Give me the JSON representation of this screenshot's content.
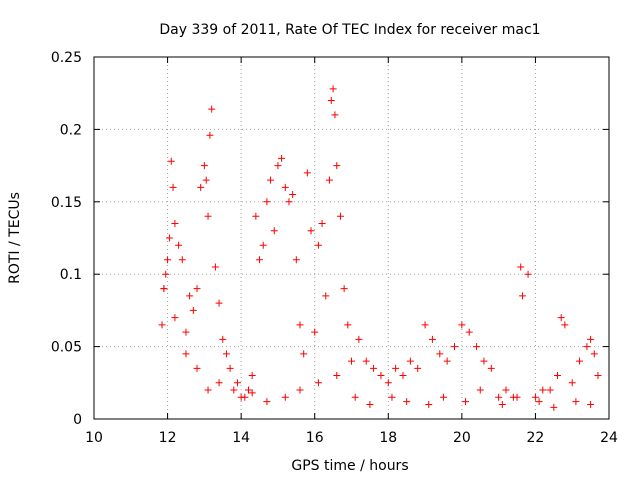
{
  "chart_data": {
    "type": "scatter",
    "title": "Day 339 of 2011, Rate Of TEC Index for receiver mac1",
    "xlabel": "GPS time / hours",
    "ylabel": "ROTI / TECUs",
    "xlim": [
      10,
      24
    ],
    "ylim": [
      0,
      0.25
    ],
    "xticks": [
      "10",
      "12",
      "14",
      "16",
      "18",
      "20",
      "22",
      "24"
    ],
    "yticks": [
      "0",
      "0.05",
      "0.1",
      "0.15",
      "0.2",
      "0.25"
    ],
    "grid": true,
    "marker": "+",
    "color": "#ff0000",
    "x": [
      11.85,
      11.9,
      11.95,
      12.0,
      12.05,
      12.1,
      12.15,
      12.2,
      12.3,
      12.4,
      12.5,
      12.6,
      12.7,
      12.8,
      12.9,
      13.0,
      13.05,
      13.1,
      13.15,
      13.2,
      13.3,
      13.4,
      13.5,
      13.6,
      13.7,
      13.8,
      13.9,
      14.0,
      14.1,
      14.2,
      14.3,
      14.4,
      14.5,
      14.6,
      14.7,
      14.8,
      14.9,
      15.0,
      15.1,
      15.2,
      15.3,
      15.4,
      15.5,
      15.6,
      15.7,
      15.8,
      15.9,
      16.0,
      16.1,
      16.2,
      16.3,
      16.4,
      16.45,
      16.5,
      16.55,
      16.6,
      16.7,
      16.8,
      16.9,
      17.0,
      17.2,
      17.4,
      17.6,
      17.8,
      18.0,
      18.2,
      18.4,
      18.6,
      18.8,
      19.0,
      19.2,
      19.4,
      19.6,
      19.8,
      20.0,
      20.2,
      20.4,
      20.6,
      20.8,
      21.0,
      21.2,
      21.4,
      21.6,
      21.65,
      21.8,
      22.0,
      22.2,
      22.4,
      22.6,
      22.7,
      22.8,
      23.0,
      23.2,
      23.4,
      23.5,
      23.6,
      23.7,
      11.9,
      12.2,
      12.5,
      12.8,
      13.1,
      13.4,
      14.3,
      14.7,
      15.2,
      15.6,
      16.1,
      16.6,
      17.1,
      17.5,
      18.1,
      18.5,
      19.1,
      19.5,
      20.1,
      20.5,
      21.1,
      21.5,
      22.1,
      22.5,
      23.1,
      23.5
    ],
    "y": [
      0.065,
      0.09,
      0.1,
      0.11,
      0.125,
      0.178,
      0.16,
      0.135,
      0.12,
      0.11,
      0.06,
      0.085,
      0.075,
      0.09,
      0.16,
      0.175,
      0.165,
      0.14,
      0.196,
      0.214,
      0.105,
      0.08,
      0.055,
      0.045,
      0.035,
      0.02,
      0.025,
      0.015,
      0.015,
      0.02,
      0.03,
      0.14,
      0.11,
      0.12,
      0.15,
      0.165,
      0.13,
      0.175,
      0.18,
      0.16,
      0.15,
      0.155,
      0.11,
      0.065,
      0.045,
      0.17,
      0.13,
      0.06,
      0.12,
      0.135,
      0.085,
      0.165,
      0.22,
      0.228,
      0.21,
      0.175,
      0.14,
      0.09,
      0.065,
      0.04,
      0.055,
      0.04,
      0.035,
      0.03,
      0.025,
      0.035,
      0.03,
      0.04,
      0.035,
      0.065,
      0.055,
      0.045,
      0.04,
      0.05,
      0.065,
      0.06,
      0.05,
      0.04,
      0.035,
      0.015,
      0.02,
      0.015,
      0.105,
      0.085,
      0.1,
      0.015,
      0.02,
      0.02,
      0.03,
      0.07,
      0.065,
      0.025,
      0.04,
      0.05,
      0.055,
      0.045,
      0.03,
      0.09,
      0.07,
      0.045,
      0.035,
      0.02,
      0.025,
      0.018,
      0.012,
      0.015,
      0.02,
      0.025,
      0.03,
      0.015,
      0.01,
      0.015,
      0.012,
      0.01,
      0.015,
      0.012,
      0.02,
      0.01,
      0.015,
      0.012,
      0.008,
      0.012,
      0.01
    ]
  }
}
